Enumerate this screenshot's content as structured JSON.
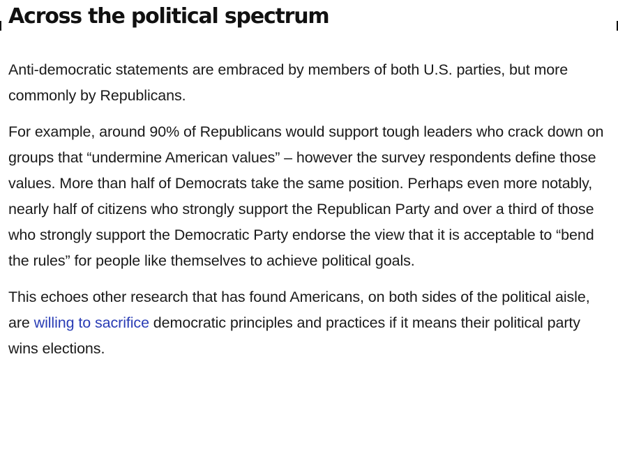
{
  "article": {
    "heading": "Across the political spectrum",
    "paragraphs": {
      "p1": "Anti-democratic statements are embraced by members of both U.S. parties, but more commonly by Republicans.",
      "p2": "For example, around 90% of Republicans would support tough leaders who crack down on groups that “undermine American values” – however the survey respondents define those values. More than half of Democrats take the same position. Perhaps even more notably, nearly half of citizens who strongly support the Republican Party and over a third of those who strongly support the Democratic Party endorse the view that it is acceptable to “bend the rules” for people like themselves to achieve political goals.",
      "p3_before": "This echoes other research that has found Americans, on both sides of the political aisle, are ",
      "p3_link": "willing to sacrifice",
      "p3_after": " democratic principles and practices if it means their political party wins elections."
    }
  },
  "colors": {
    "text": "#1a1a1a",
    "link": "#2a3db5",
    "background": "#ffffff"
  }
}
